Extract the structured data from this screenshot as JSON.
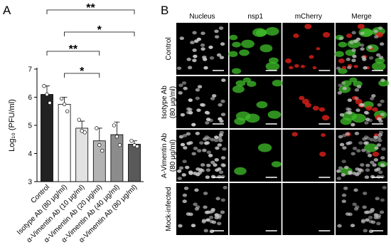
{
  "panel_labels": [
    "A",
    "B"
  ],
  "chart_data": {
    "type": "bar",
    "ylabel": "Log₁₀ (PFU/ml)",
    "categories": [
      "Control",
      "Isotype Ab (80 μg/ml)",
      "α-Vimentin Ab (10 μg/ml)",
      "α-Vimentin Ab (20 μg/ml)",
      "α-Vimentin Ab (40 μg/ml)",
      "α-Vimentin Ab (80 μg/ml)"
    ],
    "values": [
      6.1,
      5.75,
      4.9,
      4.45,
      4.67,
      4.33
    ],
    "errors": [
      0.3,
      0.25,
      0.25,
      0.45,
      0.45,
      0.12
    ],
    "points": [
      [
        6.4,
        6.1,
        5.8
      ],
      [
        5.95,
        5.75,
        5.5
      ],
      [
        5.2,
        4.8,
        4.75
      ],
      [
        4.9,
        4.3,
        4.1
      ],
      [
        5.0,
        4.6,
        4.3
      ],
      [
        4.45,
        4.3,
        4.25
      ]
    ],
    "colors": [
      "#222222",
      "#ffffff",
      "#e2e2e2",
      "#b3b3b3",
      "#8c8c8c",
      "#595959"
    ],
    "ylim": [
      3,
      7
    ],
    "yticks": [
      3,
      4,
      5,
      6,
      7
    ],
    "annotations": [
      {
        "from": 0,
        "to": 5,
        "text": "**"
      },
      {
        "from": 1,
        "to": 5,
        "text": "*"
      },
      {
        "from": 0,
        "to": 3,
        "text": "**"
      },
      {
        "from": 1,
        "to": 3,
        "text": "*"
      }
    ]
  },
  "image_grid": {
    "columns": [
      "Nucleus",
      "nsp1",
      "mCherry",
      "Merge"
    ],
    "rows": [
      [
        "Control"
      ],
      [
        "Isotype Ab",
        "(80 μg/ml)"
      ],
      [
        "A-Vimentin Ab",
        "(80 μg/ml)"
      ],
      [
        "Mock-infected"
      ]
    ]
  }
}
